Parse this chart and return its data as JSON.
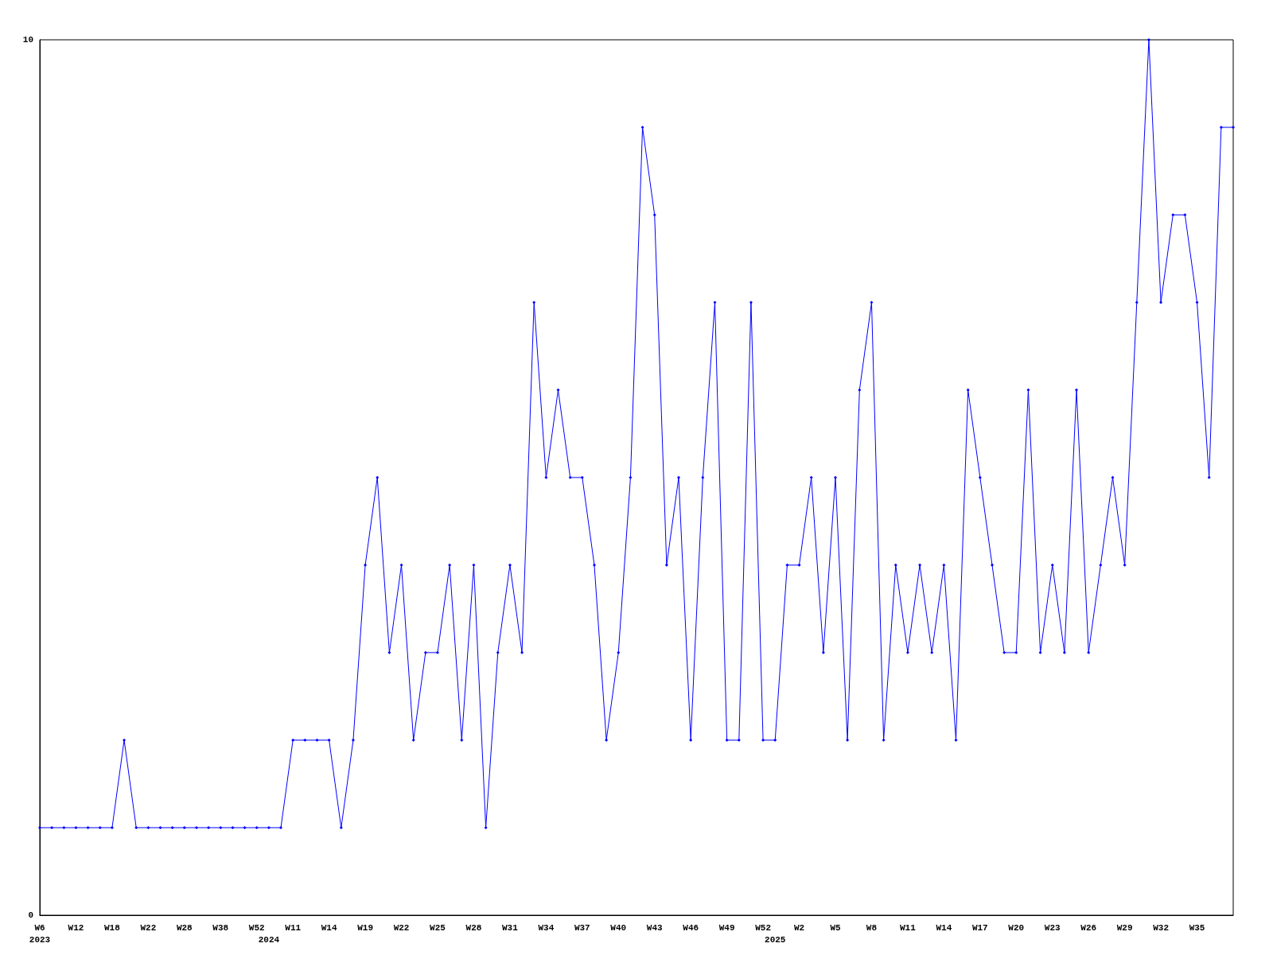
{
  "chart_data": {
    "type": "line",
    "categories": [
      "W6\n2023",
      null,
      null,
      "W12",
      null,
      null,
      "W18",
      null,
      null,
      "W22",
      null,
      null,
      "W28",
      null,
      null,
      "W38",
      null,
      null,
      "W52",
      "\n2024",
      null,
      "W11",
      null,
      null,
      "W14",
      null,
      null,
      "W19",
      null,
      null,
      "W22",
      null,
      null,
      "W25",
      null,
      null,
      "W28",
      null,
      null,
      "W31",
      null,
      null,
      "W34",
      null,
      null,
      "W37",
      null,
      null,
      "W40",
      null,
      null,
      "W43",
      null,
      null,
      "W46",
      null,
      null,
      "W49",
      null,
      null,
      "W52",
      "\n2025",
      null,
      "W2",
      null,
      null,
      "W5",
      null,
      null,
      "W8",
      null,
      null,
      "W11",
      null,
      null,
      "W14",
      null,
      null,
      "W17",
      null,
      null,
      "W20",
      null,
      null,
      "W23",
      null,
      null,
      "W26",
      null,
      null,
      "W29",
      null,
      null,
      "W32",
      null,
      null,
      "W35",
      null,
      null,
      null
    ],
    "series": [
      {
        "color": "#0000ff",
        "values": [
          1,
          1,
          1,
          1,
          1,
          1,
          1,
          2,
          1,
          1,
          1,
          1,
          1,
          1,
          1,
          1,
          1,
          1,
          1,
          1,
          1,
          2,
          2,
          2,
          2,
          1,
          2,
          4,
          5,
          3,
          4,
          2,
          3,
          3,
          4,
          2,
          4,
          1,
          3,
          4,
          3,
          7,
          5,
          6,
          5,
          5,
          4,
          2,
          3,
          5,
          9,
          8,
          4,
          5,
          2,
          5,
          7,
          2,
          2,
          7,
          2,
          2,
          4,
          4,
          5,
          3,
          5,
          2,
          6,
          7,
          2,
          4,
          3,
          4,
          3,
          4,
          2,
          6,
          5,
          4,
          3,
          3,
          6,
          3,
          4,
          3,
          6,
          3,
          4,
          5,
          4,
          7,
          10,
          7,
          8,
          8,
          7,
          5,
          9,
          9
        ]
      }
    ],
    "ylim": [
      0,
      10
    ],
    "yticks": [
      0,
      10
    ],
    "grid": false,
    "marker": "diamond",
    "line_style": "solid"
  }
}
